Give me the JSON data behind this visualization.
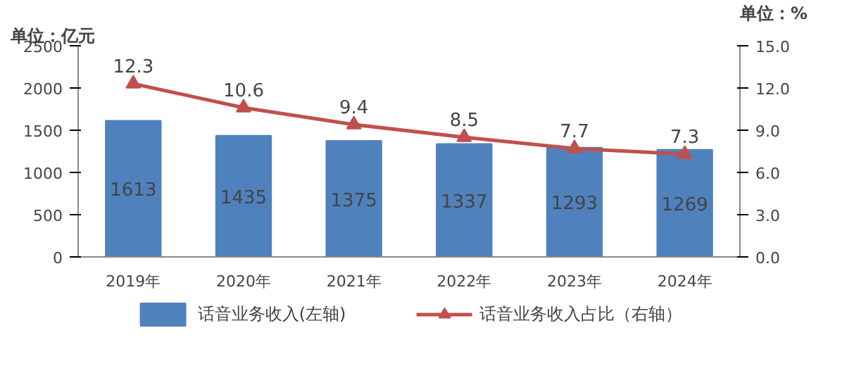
{
  "chart_data": {
    "type": "bar",
    "ylabel": "单位：亿元",
    "y2label": "单位：%",
    "categories": [
      "2019年",
      "2020年",
      "2021年",
      "2022年",
      "2023年",
      "2024年"
    ],
    "series": [
      {
        "name": "话音业务收入(左轴)",
        "color": "#4f81bd",
        "values": [
          1613,
          1435,
          1375,
          1337,
          1293,
          1269
        ]
      },
      {
        "name": "话音业务收入占比（右轴）",
        "type": "line",
        "axis": "y2",
        "color": "#c0504d",
        "marker": "triangle",
        "values": [
          12.3,
          10.6,
          9.4,
          8.5,
          7.7,
          7.3
        ]
      }
    ],
    "ylim": [
      0,
      2500
    ],
    "yticks": [
      0,
      500,
      1000,
      1500,
      2000,
      2500
    ],
    "y2lim": [
      0,
      15
    ],
    "y2ticks": [
      {
        "value": 0,
        "label": "0.0"
      },
      {
        "value": 3,
        "label": "3.0"
      },
      {
        "value": 6,
        "label": "6.0"
      },
      {
        "value": 9,
        "label": "9.0"
      },
      {
        "value": 12,
        "label": "12.0"
      },
      {
        "value": 15,
        "label": "15.0"
      }
    ],
    "data_labels": true,
    "legend": "bottom",
    "grid": false
  }
}
